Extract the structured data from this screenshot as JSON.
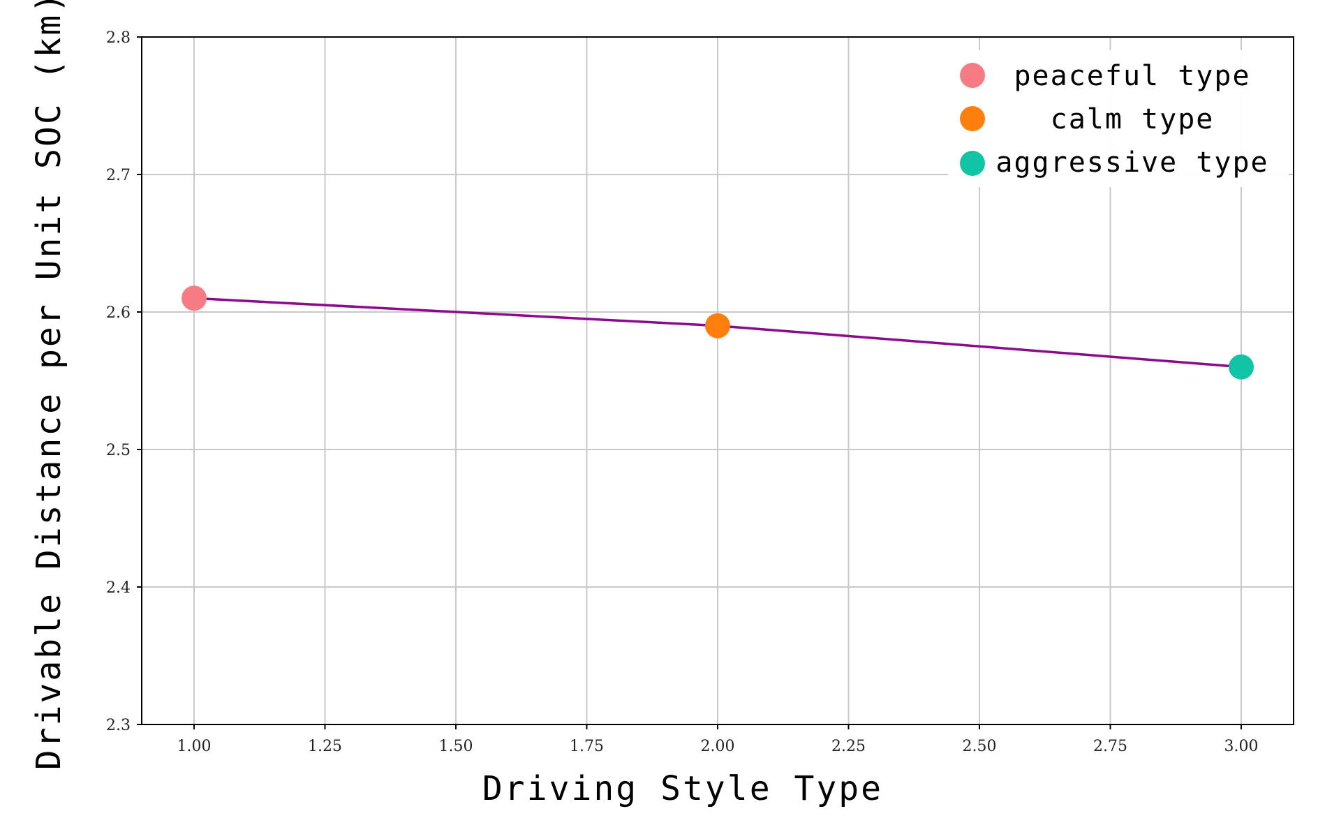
{
  "chart_data": {
    "type": "line",
    "xlabel": "Driving Style Type",
    "ylabel": "Drivable Distance per Unit SOC (km)",
    "xlim": [
      0.9,
      3.1
    ],
    "ylim": [
      2.3,
      2.8
    ],
    "x_ticks": [
      1.0,
      1.25,
      1.5,
      1.75,
      2.0,
      2.25,
      2.5,
      2.75,
      3.0
    ],
    "x_tick_labels": [
      "1.00",
      "1.25",
      "1.50",
      "1.75",
      "2.00",
      "2.25",
      "2.50",
      "2.75",
      "3.00"
    ],
    "y_ticks": [
      2.3,
      2.4,
      2.5,
      2.6,
      2.7,
      2.8
    ],
    "y_tick_labels": [
      "2.3",
      "2.4",
      "2.5",
      "2.6",
      "2.7",
      "2.8"
    ],
    "grid": true,
    "line": {
      "x": [
        1.0,
        2.0,
        3.0
      ],
      "y": [
        2.61,
        2.59,
        2.56
      ],
      "color": "#8b0a8e"
    },
    "points": [
      {
        "name": "peaceful type",
        "x": 1.0,
        "y": 2.61,
        "color": "#f77b82"
      },
      {
        "name": "calm type",
        "x": 2.0,
        "y": 2.59,
        "color": "#ff7f0e"
      },
      {
        "name": "aggressive type",
        "x": 3.0,
        "y": 2.56,
        "color": "#12c4a6"
      }
    ],
    "legend": {
      "position": "top-right",
      "entries": [
        "peaceful type",
        "calm type",
        "aggressive type"
      ]
    }
  }
}
